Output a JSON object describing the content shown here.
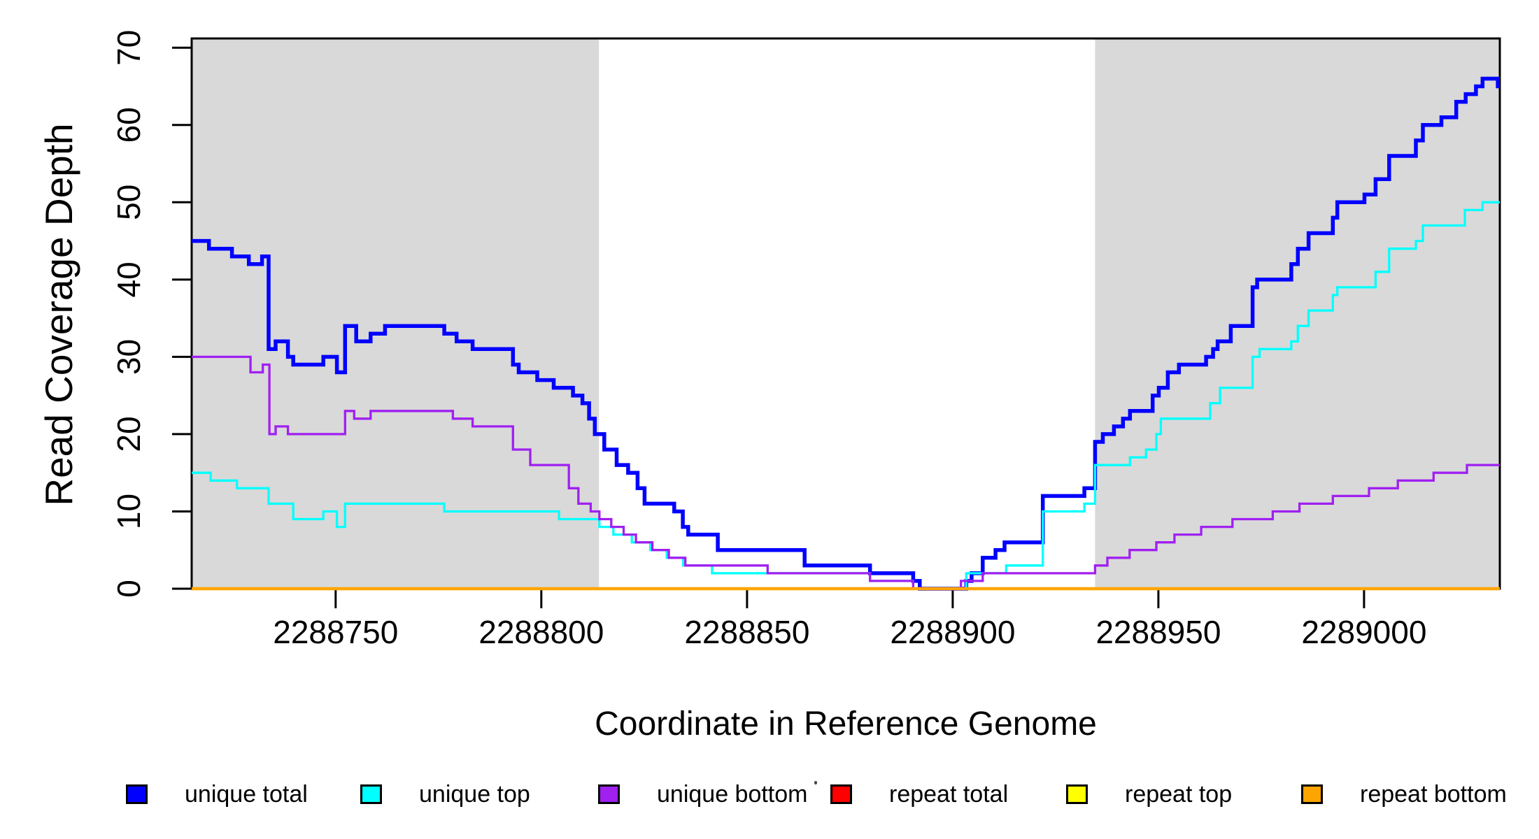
{
  "axes": {
    "x_label": "Coordinate in Reference Genome",
    "y_label": "Read Coverage Depth",
    "x_tick_labels": [
      "2288750",
      "2288800",
      "2288850",
      "2288900",
      "2288950",
      "2289000"
    ],
    "y_tick_labels": [
      "0",
      "10",
      "20",
      "30",
      "40",
      "50",
      "60",
      "70"
    ]
  },
  "legend": {
    "items": [
      {
        "label": "unique total",
        "color": "#0000FF"
      },
      {
        "label": "unique top",
        "color": "#00FFFF"
      },
      {
        "label": "unique bottom",
        "color": "#A020F0"
      },
      {
        "label": "repeat total",
        "color": "#FF0000"
      },
      {
        "label": "repeat top",
        "color": "#FFFF00"
      },
      {
        "label": "repeat bottom",
        "color": "#FFA500"
      }
    ]
  },
  "chart_data": {
    "type": "line",
    "subtype": "step-post",
    "title": "",
    "xlabel": "Coordinate in Reference Genome",
    "ylabel": "Read Coverage Depth",
    "xlim": [
      2288715,
      2289033
    ],
    "ylim": [
      0,
      71.2
    ],
    "x_ticks": [
      2288750,
      2288800,
      2288850,
      2288900,
      2288950,
      2289000
    ],
    "y_ticks": [
      0,
      10,
      20,
      30,
      40,
      50,
      60,
      70
    ],
    "grid": false,
    "legend_position": "bottom",
    "axis_color": "#000000",
    "background_shading": {
      "color": "#D9D9D9",
      "regions": [
        [
          2288715,
          2288814
        ],
        [
          2288934.6,
          2289033
        ]
      ]
    },
    "series": [
      {
        "name": "unique total",
        "color": "#0000FF",
        "line_width": 5.5,
        "steps": [
          [
            2288715,
            45
          ],
          [
            2288719.2,
            44
          ],
          [
            2288724.8,
            43
          ],
          [
            2288728.9,
            42
          ],
          [
            2288732.1,
            43
          ],
          [
            2288733.7,
            31
          ],
          [
            2288735.4,
            32
          ],
          [
            2288738.4,
            30
          ],
          [
            2288739.7,
            29
          ],
          [
            2288747,
            30
          ],
          [
            2288750.3,
            28
          ],
          [
            2288752.3,
            34
          ],
          [
            2288755,
            32
          ],
          [
            2288758.5,
            33
          ],
          [
            2288762,
            34
          ],
          [
            2288776.4,
            33
          ],
          [
            2288779.4,
            32
          ],
          [
            2288783.3,
            31
          ],
          [
            2288793.1,
            29
          ],
          [
            2288794.5,
            28
          ],
          [
            2288799,
            27
          ],
          [
            2288803,
            26
          ],
          [
            2288807.7,
            25
          ],
          [
            2288810,
            24
          ],
          [
            2288811.6,
            22
          ],
          [
            2288813,
            20
          ],
          [
            2288815.3,
            18
          ],
          [
            2288818.3,
            16
          ],
          [
            2288821.1,
            15
          ],
          [
            2288823.4,
            13
          ],
          [
            2288825.1,
            11
          ],
          [
            2288832.3,
            10
          ],
          [
            2288834.4,
            8
          ],
          [
            2288835.7,
            7
          ],
          [
            2288842.9,
            5
          ],
          [
            2288864,
            3
          ],
          [
            2288879.9,
            2
          ],
          [
            2288890.4,
            1
          ],
          [
            2288892,
            0
          ],
          [
            2288903.3,
            1
          ],
          [
            2288904.6,
            2
          ],
          [
            2288907.3,
            4
          ],
          [
            2288910.4,
            5
          ],
          [
            2288912.6,
            6
          ],
          [
            2288921.9,
            12
          ],
          [
            2288932,
            13
          ],
          [
            2288934.6,
            19
          ],
          [
            2288936.5,
            20
          ],
          [
            2288939.2,
            21
          ],
          [
            2288941.4,
            22
          ],
          [
            2288943.1,
            23
          ],
          [
            2288948.6,
            25
          ],
          [
            2288950.1,
            26
          ],
          [
            2288952.3,
            28
          ],
          [
            2288955,
            29
          ],
          [
            2288961.6,
            30
          ],
          [
            2288963.3,
            31
          ],
          [
            2288964.4,
            32
          ],
          [
            2288967.6,
            34
          ],
          [
            2288972.9,
            39
          ],
          [
            2288974,
            40
          ],
          [
            2288982.3,
            42
          ],
          [
            2288983.9,
            44
          ],
          [
            2288986.5,
            46
          ],
          [
            2288992.4,
            48
          ],
          [
            2288993.5,
            50
          ],
          [
            2289000.1,
            51
          ],
          [
            2289002.8,
            53
          ],
          [
            2289006.1,
            56
          ],
          [
            2289012.6,
            58
          ],
          [
            2289014.3,
            60
          ],
          [
            2289018.8,
            61
          ],
          [
            2289022.4,
            63
          ],
          [
            2289024.7,
            64
          ],
          [
            2289027.2,
            65
          ],
          [
            2289028.8,
            66
          ],
          [
            2289032.5,
            65
          ]
        ]
      },
      {
        "name": "unique top",
        "color": "#00FFFF",
        "line_width": 3.3,
        "steps": [
          [
            2288715,
            15
          ],
          [
            2288719.6,
            14
          ],
          [
            2288726,
            13
          ],
          [
            2288733.7,
            11
          ],
          [
            2288739.7,
            9
          ],
          [
            2288747,
            10
          ],
          [
            2288750.3,
            8
          ],
          [
            2288752.3,
            11
          ],
          [
            2288776.4,
            10
          ],
          [
            2288804.3,
            9
          ],
          [
            2288814.1,
            8
          ],
          [
            2288817.5,
            7
          ],
          [
            2288822,
            6
          ],
          [
            2288826.5,
            5
          ],
          [
            2288830.5,
            4
          ],
          [
            2288834.5,
            3
          ],
          [
            2288841.5,
            2
          ],
          [
            2288879.9,
            1
          ],
          [
            2288890.4,
            0
          ],
          [
            2288903.3,
            2
          ],
          [
            2288913,
            3
          ],
          [
            2288921.9,
            10
          ],
          [
            2288932,
            11
          ],
          [
            2288934.6,
            16
          ],
          [
            2288943.1,
            17
          ],
          [
            2288947,
            18
          ],
          [
            2288949.5,
            20
          ],
          [
            2288950.6,
            22
          ],
          [
            2288962.6,
            24
          ],
          [
            2288965,
            26
          ],
          [
            2288972.9,
            30
          ],
          [
            2288974.6,
            31
          ],
          [
            2288982.3,
            32
          ],
          [
            2288983.9,
            34
          ],
          [
            2288986.5,
            36
          ],
          [
            2288992.4,
            38
          ],
          [
            2288993.5,
            39
          ],
          [
            2289002.8,
            41
          ],
          [
            2289006.1,
            44
          ],
          [
            2289012.6,
            45
          ],
          [
            2289014.3,
            47
          ],
          [
            2289024.5,
            49
          ],
          [
            2289028.8,
            50
          ]
        ]
      },
      {
        "name": "unique bottom",
        "color": "#A020F0",
        "line_width": 3.3,
        "steps": [
          [
            2288715,
            30
          ],
          [
            2288729.3,
            28
          ],
          [
            2288732.3,
            29
          ],
          [
            2288733.9,
            20
          ],
          [
            2288735.4,
            21
          ],
          [
            2288738.4,
            20
          ],
          [
            2288752.3,
            23
          ],
          [
            2288754.5,
            22
          ],
          [
            2288758.5,
            23
          ],
          [
            2288778.5,
            22
          ],
          [
            2288783.3,
            21
          ],
          [
            2288793.1,
            18
          ],
          [
            2288797.3,
            16
          ],
          [
            2288806.7,
            13
          ],
          [
            2288809,
            11
          ],
          [
            2288812,
            10
          ],
          [
            2288814.1,
            9
          ],
          [
            2288817,
            8
          ],
          [
            2288820,
            7
          ],
          [
            2288823,
            6
          ],
          [
            2288827,
            5
          ],
          [
            2288831,
            4
          ],
          [
            2288835,
            3
          ],
          [
            2288855,
            2
          ],
          [
            2288879.9,
            1
          ],
          [
            2288890.4,
            0
          ],
          [
            2288902,
            1
          ],
          [
            2288907.3,
            2
          ],
          [
            2288934.6,
            3
          ],
          [
            2288937.6,
            4
          ],
          [
            2288943,
            5
          ],
          [
            2288949.5,
            6
          ],
          [
            2288953.9,
            7
          ],
          [
            2288960.4,
            8
          ],
          [
            2288968,
            9
          ],
          [
            2288977.8,
            10
          ],
          [
            2288984.3,
            11
          ],
          [
            2288992.4,
            12
          ],
          [
            2289001.2,
            13
          ],
          [
            2289008.2,
            14
          ],
          [
            2289016.9,
            15
          ],
          [
            2289025,
            16
          ]
        ]
      },
      {
        "name": "repeat total",
        "color": "#FF0000",
        "line_width": 3,
        "steps": [
          [
            2288715,
            0
          ]
        ]
      },
      {
        "name": "repeat top",
        "color": "#FFFF00",
        "line_width": 3,
        "steps": [
          [
            2288715,
            0
          ]
        ]
      },
      {
        "name": "repeat bottom",
        "color": "#FFA500",
        "line_width": 4.5,
        "steps": [
          [
            2288715,
            0
          ]
        ]
      }
    ]
  }
}
